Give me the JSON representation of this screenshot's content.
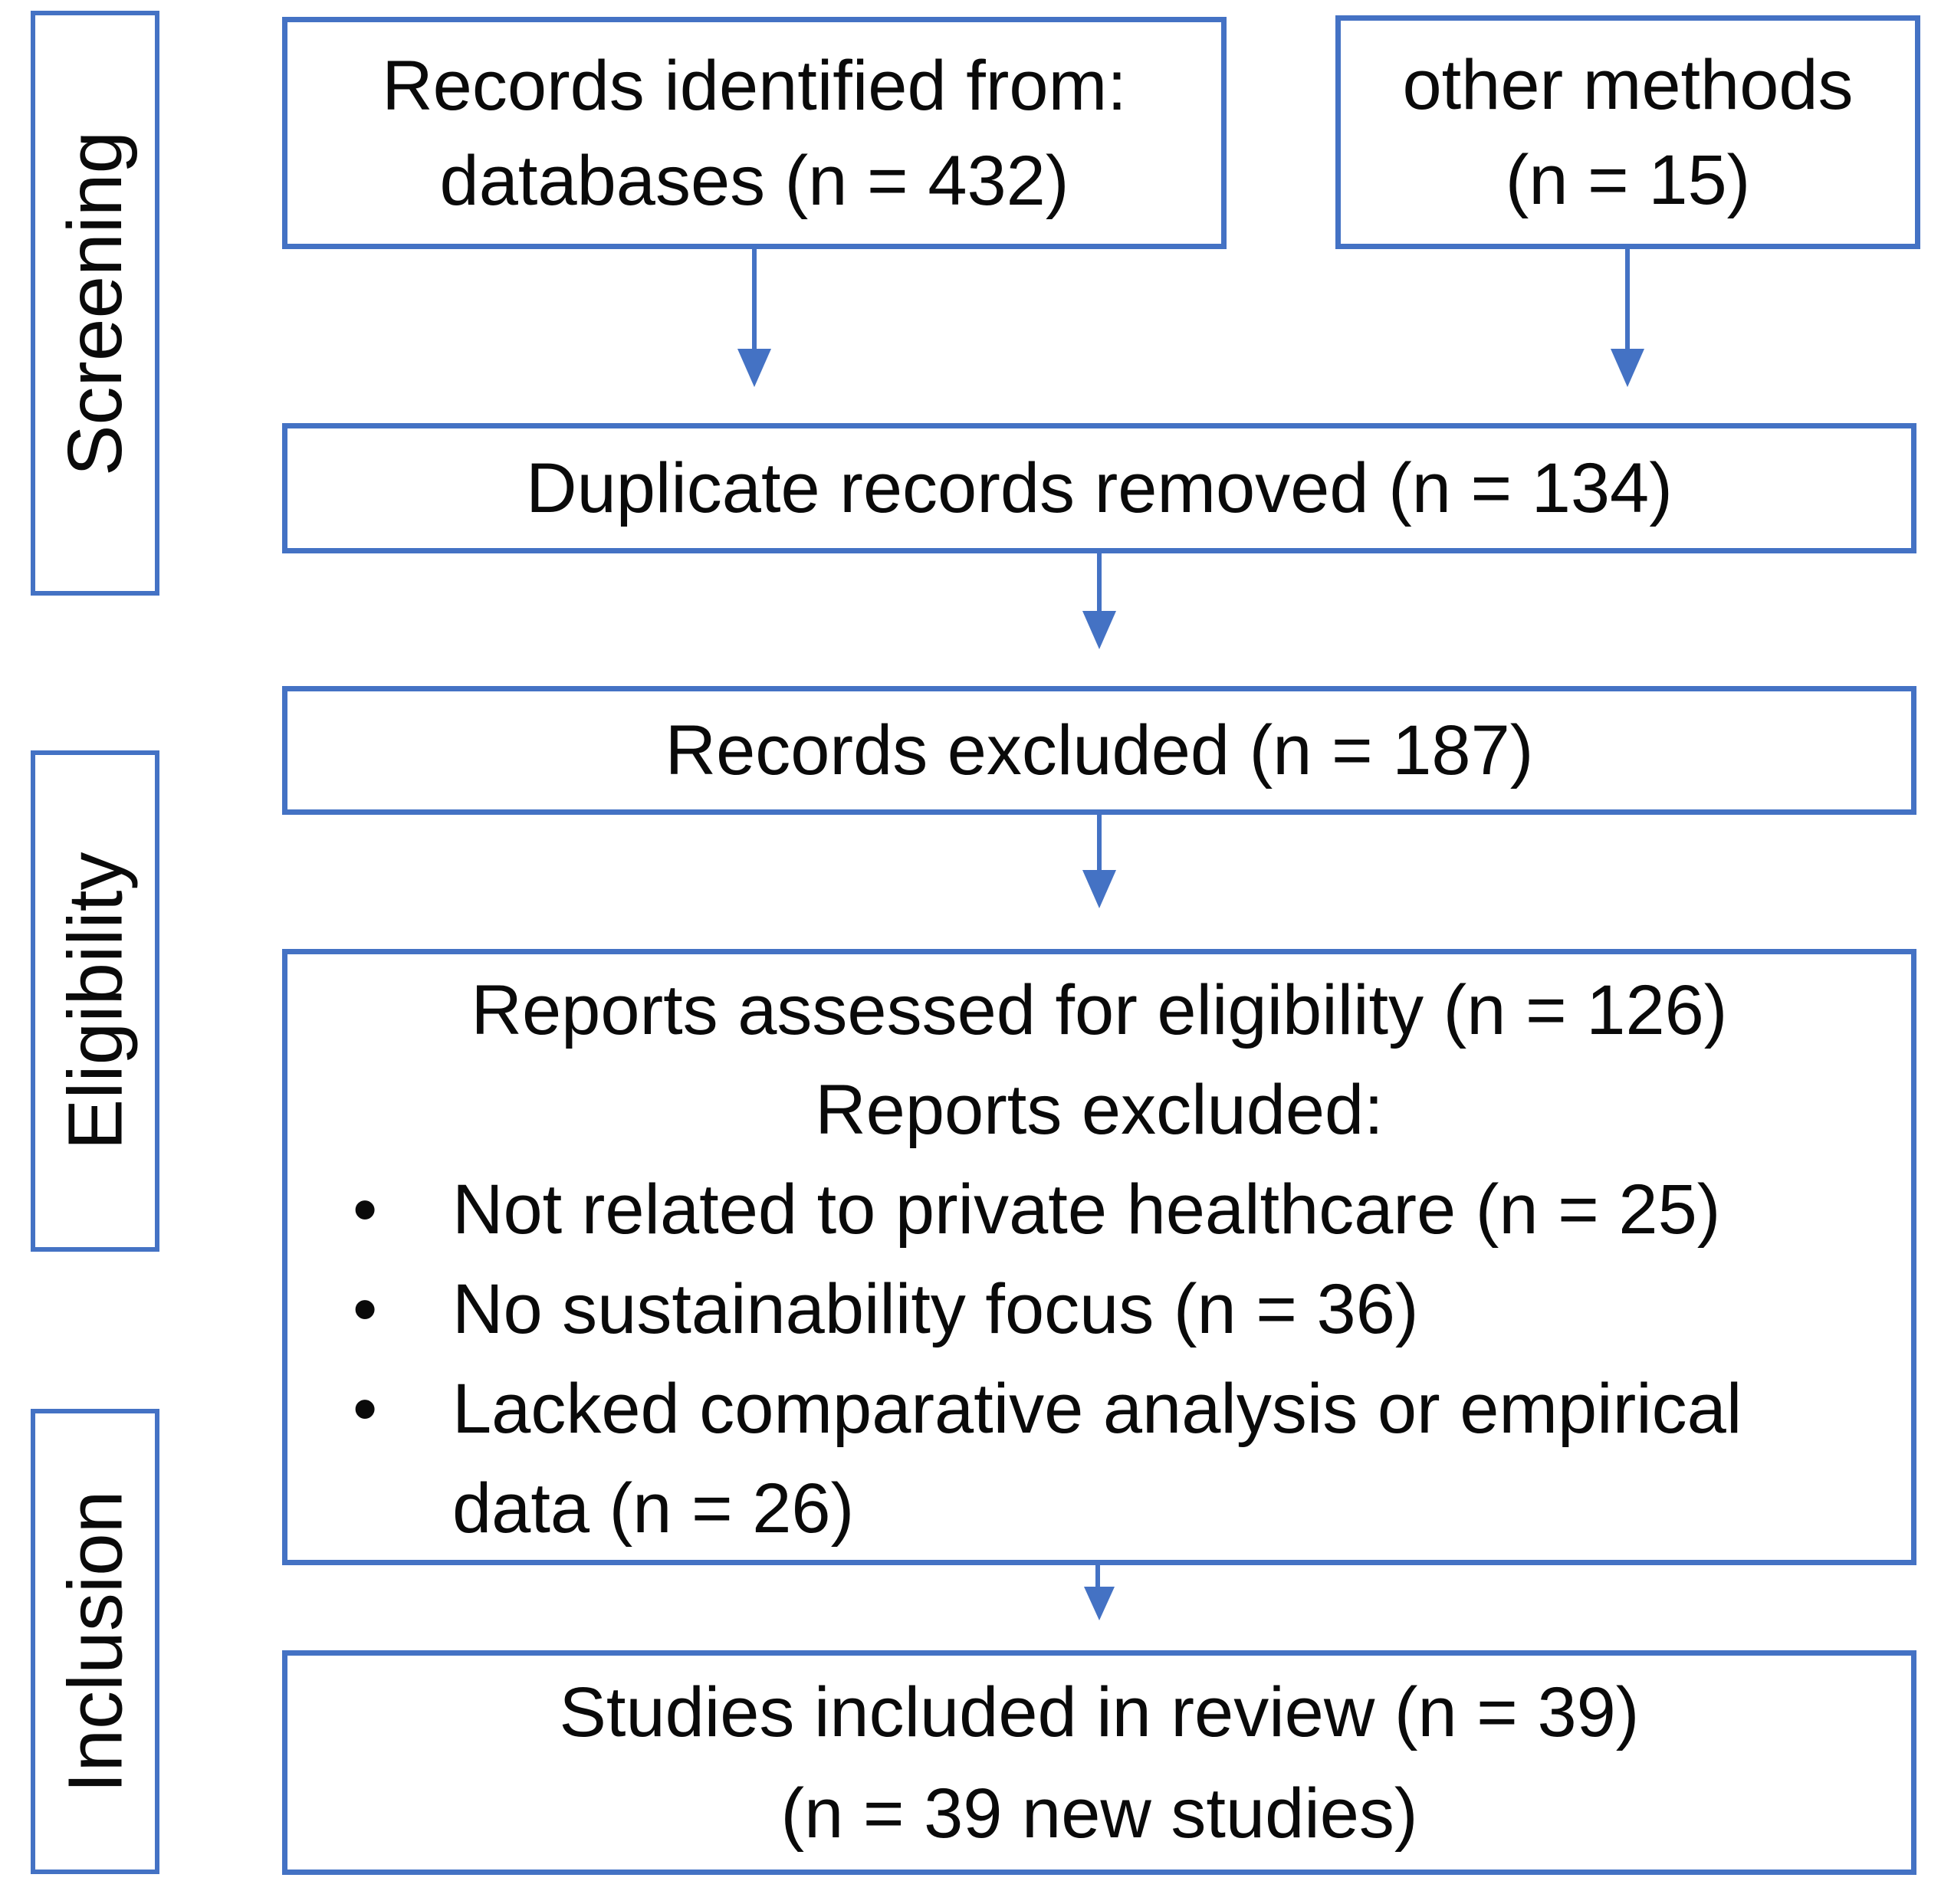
{
  "diagram_type": "PRISMA flow diagram",
  "colors": {
    "accent": "#4472C4",
    "text": "#0a0a0a",
    "background": "#ffffff"
  },
  "stages": [
    {
      "label": "Screening"
    },
    {
      "label": "Eligibility"
    },
    {
      "label": "Inclusion"
    }
  ],
  "boxes": {
    "identified": {
      "line1": "Records identified from:",
      "line2": "databases (n = 432)"
    },
    "other_methods": {
      "line1": "other methods",
      "line2": "(n = 15)"
    },
    "duplicates": {
      "text": "Duplicate records removed (n = 134)"
    },
    "excluded": {
      "text": "Records excluded (n = 187)"
    },
    "eligibility": {
      "line1": "Reports assessed for eligibility (n = 126)",
      "line2": "Reports excluded:",
      "bullets": [
        "Not related to private healthcare (n = 25)",
        "No sustainability focus (n = 36)",
        "Lacked comparative analysis or empirical data (n = 26)"
      ]
    },
    "included": {
      "line1": "Studies included in review (n = 39)",
      "line2": "(n = 39 new studies)"
    }
  }
}
